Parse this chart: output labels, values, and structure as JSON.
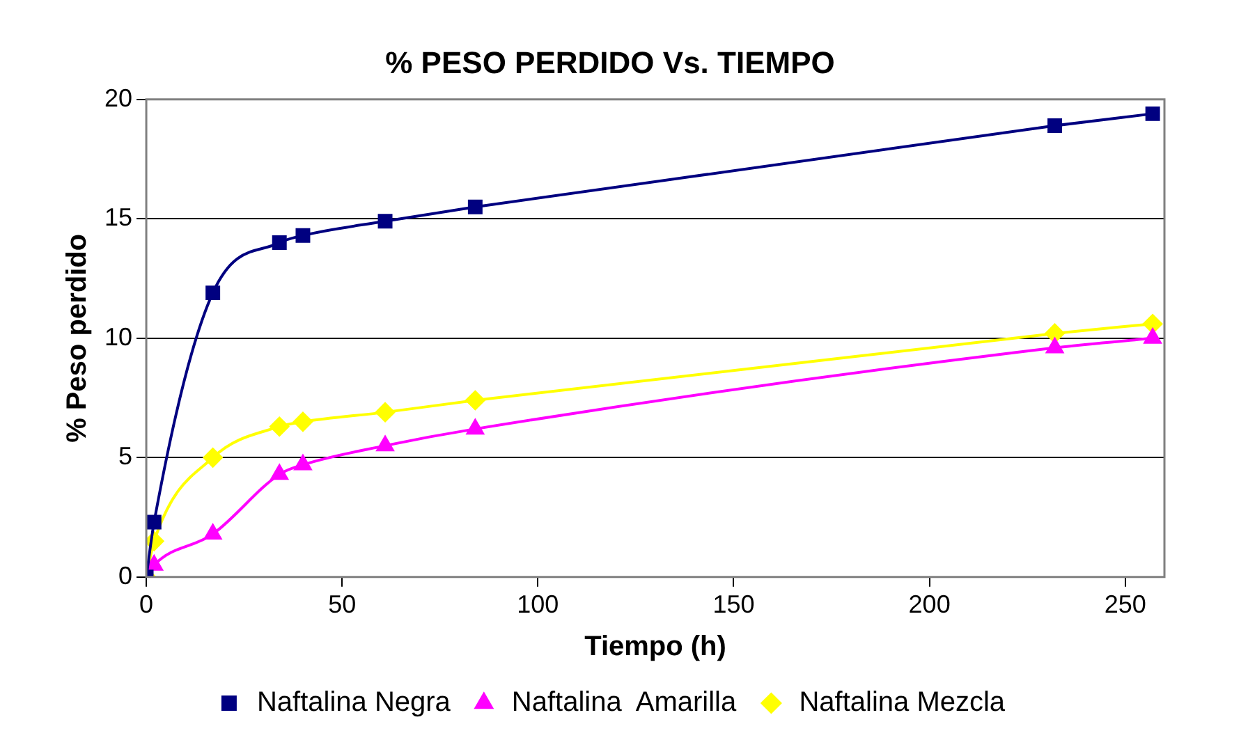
{
  "chart_data": {
    "type": "line",
    "title": "% PESO PERDIDO Vs. TIEMPO",
    "xlabel": "Tiempo (h)",
    "ylabel": "% Peso perdido",
    "x": [
      0,
      2,
      17,
      34,
      40,
      61,
      84,
      232,
      257
    ],
    "series": [
      {
        "name": "Naftalina Negra",
        "color": "#000080",
        "marker": "square",
        "values": [
          0,
          2.3,
          11.9,
          14.0,
          14.3,
          14.9,
          15.5,
          18.9,
          19.4
        ]
      },
      {
        "name": "Naftalina  Amarilla",
        "color": "#ff00ff",
        "marker": "triangle",
        "values": [
          0,
          0.5,
          1.8,
          4.3,
          4.7,
          5.5,
          6.2,
          9.6,
          10.0
        ]
      },
      {
        "name": "Naftalina Mezcla",
        "color": "#ffff00",
        "marker": "diamond",
        "values": [
          0,
          1.5,
          5.0,
          6.3,
          6.5,
          6.9,
          7.4,
          10.2,
          10.6
        ]
      }
    ],
    "xlim": [
      0,
      260
    ],
    "xticks": [
      0,
      50,
      100,
      150,
      200,
      250
    ],
    "ylim": [
      0,
      20
    ],
    "yticks": [
      0,
      5,
      10,
      15,
      20
    ],
    "grid": "y",
    "legend": "bottom",
    "line_style": "solid"
  }
}
